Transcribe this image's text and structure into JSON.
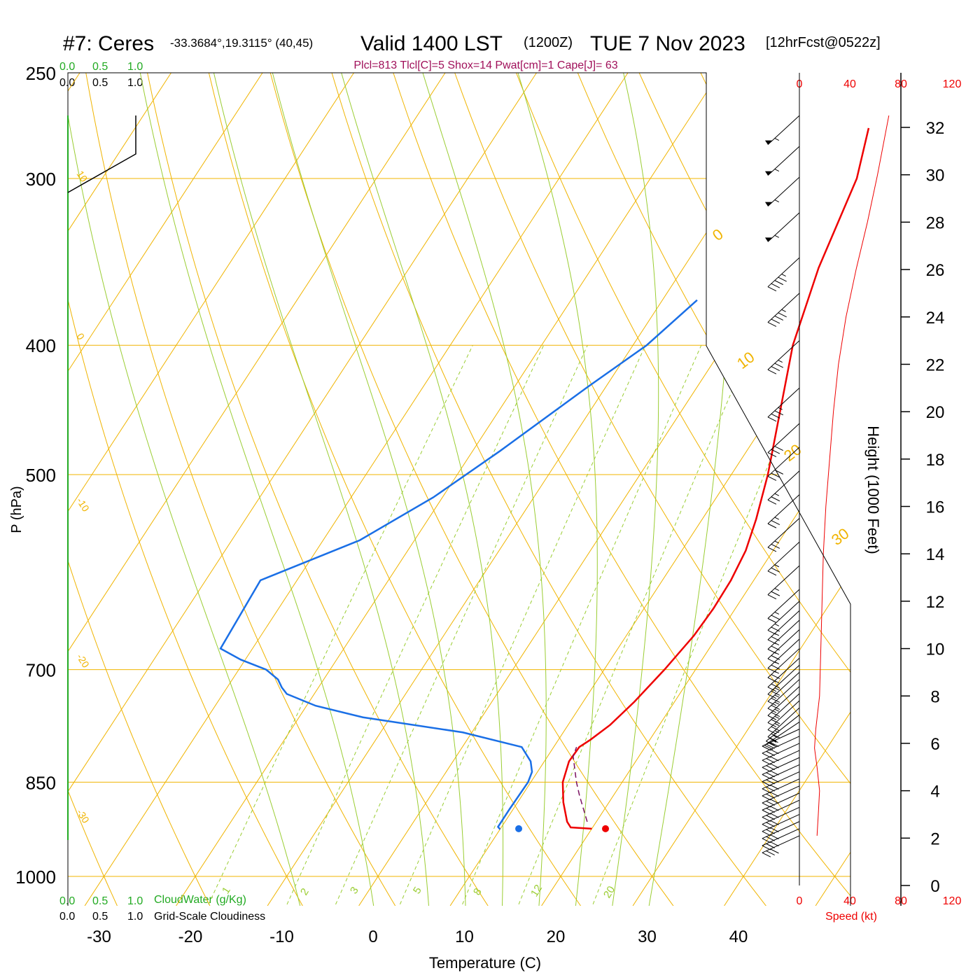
{
  "header": {
    "station": "#7: Ceres",
    "coords": "-33.3684°,19.3115° (40,45)",
    "valid": "Valid 1400 LST",
    "zulu": "(1200Z)",
    "date": "TUE 7 Nov 2023",
    "forecast": "[12hrFcst@0522z]",
    "indices": "Plcl=813 Tlcl[C]=5 Shox=14 Pwat[cm]=1 Cape[J]= 63"
  },
  "colors": {
    "orange": "#f0b400",
    "green_lines": "#9acd32",
    "mixing": "#9acd32",
    "temperature": "#ee0000",
    "dewpoint": "#1a6fe6",
    "parcel": "#7a1060",
    "cloud_green": "#22aa22",
    "indices": "#a0105a",
    "speed": "#ee0000"
  },
  "legend_top": {
    "cloudwater_ticks": [
      "0.0",
      "0.5",
      "1.0"
    ],
    "cloudiness_ticks": [
      "0.0",
      "0.5",
      "1.0"
    ]
  },
  "legend_bottom": {
    "cloudwater_ticks": [
      "0.0",
      "0.5",
      "1.0"
    ],
    "cloudwater_label": "CloudWater (g/Kg)",
    "cloudiness_ticks": [
      "0.0",
      "0.5",
      "1.0"
    ],
    "cloudiness_label": "Grid-Scale Cloudiness"
  },
  "speed_axis": {
    "ticks": [
      "0",
      "40",
      "80",
      "120"
    ],
    "label": "Speed (kt)"
  },
  "chart_data": {
    "type": "skew-t log-p sounding",
    "xlabel": "Temperature (C)",
    "ylabel": "P (hPa)",
    "ylabel_right": "Height (1000 Feet)",
    "x_ticks": [
      -30,
      -20,
      -10,
      0,
      10,
      20,
      30,
      40
    ],
    "p_ticks": [
      1000,
      850,
      700,
      500,
      400,
      300,
      250
    ],
    "height_ticks": [
      0,
      2,
      4,
      6,
      8,
      10,
      12,
      14,
      16,
      18,
      20,
      22,
      24,
      26,
      28,
      30,
      32
    ],
    "isotherm_labels": [
      "10",
      "0",
      "-10",
      "-20",
      "-30"
    ],
    "theta_labels": [
      "0",
      "10",
      "20",
      "30"
    ],
    "mixing_ratio_labels": [
      "1",
      "2",
      "3",
      "5",
      "8",
      "12",
      "20"
    ],
    "temperature_profile": [
      {
        "p": 921,
        "t": 20.0
      },
      {
        "p": 919,
        "t": 17.6
      },
      {
        "p": 910,
        "t": 16.8
      },
      {
        "p": 880,
        "t": 15.0
      },
      {
        "p": 850,
        "t": 13.5
      },
      {
        "p": 820,
        "t": 12.7
      },
      {
        "p": 800,
        "t": 12.8
      },
      {
        "p": 790,
        "t": 13.5
      },
      {
        "p": 770,
        "t": 14.6
      },
      {
        "p": 740,
        "t": 15.6
      },
      {
        "p": 700,
        "t": 16.6
      },
      {
        "p": 660,
        "t": 17.4
      },
      {
        "p": 630,
        "t": 17.6
      },
      {
        "p": 600,
        "t": 17.5
      },
      {
        "p": 570,
        "t": 17.0
      },
      {
        "p": 540,
        "t": 15.9
      },
      {
        "p": 500,
        "t": 14.0
      },
      {
        "p": 470,
        "t": 12.2
      },
      {
        "p": 400,
        "t": 7.5
      },
      {
        "p": 350,
        "t": 4.8
      },
      {
        "p": 300,
        "t": 2.6
      },
      {
        "p": 275,
        "t": 0.3
      }
    ],
    "dewpoint_profile": [
      {
        "p": 922,
        "t": 10.0
      },
      {
        "p": 918,
        "t": 9.6
      },
      {
        "p": 890,
        "t": 9.6
      },
      {
        "p": 850,
        "t": 9.7
      },
      {
        "p": 835,
        "t": 9.4
      },
      {
        "p": 820,
        "t": 8.5
      },
      {
        "p": 800,
        "t": 6.5
      },
      {
        "p": 780,
        "t": -1.0
      },
      {
        "p": 760,
        "t": -13.0
      },
      {
        "p": 745,
        "t": -19.0
      },
      {
        "p": 730,
        "t": -23.0
      },
      {
        "p": 722,
        "t": -24.0
      },
      {
        "p": 712,
        "t": -25.0
      },
      {
        "p": 700,
        "t": -27.0
      },
      {
        "p": 688,
        "t": -30.5
      },
      {
        "p": 675,
        "t": -33.5
      },
      {
        "p": 600,
        "t": -34.0
      },
      {
        "p": 560,
        "t": -26.0
      },
      {
        "p": 520,
        "t": -21.0
      },
      {
        "p": 480,
        "t": -17.0
      },
      {
        "p": 430,
        "t": -12.0
      },
      {
        "p": 400,
        "t": -8.5
      },
      {
        "p": 370,
        "t": -6.2
      },
      {
        "p": 345,
        "t": -4.5
      },
      {
        "p": 325,
        "t": -6.0
      },
      {
        "p": 300,
        "t": -8.0
      },
      {
        "p": 290,
        "t": -8.4
      },
      {
        "p": 275,
        "t": -9.8
      }
    ],
    "parcel_profile": [
      {
        "p": 910,
        "t": 19.0
      },
      {
        "p": 870,
        "t": 16.3
      },
      {
        "p": 850,
        "t": 15.0
      },
      {
        "p": 813,
        "t": 12.8
      },
      {
        "p": 800,
        "t": 12.5
      }
    ],
    "surface_points": [
      {
        "name": "temperature",
        "p": 921,
        "t": 21.5
      },
      {
        "name": "dewpoint",
        "p": 921,
        "t": 12.0
      }
    ],
    "wind_speed_profile": [
      {
        "h": 2.1,
        "s": 14
      },
      {
        "h": 3.0,
        "s": 15
      },
      {
        "h": 4.0,
        "s": 16
      },
      {
        "h": 5.0,
        "s": 14
      },
      {
        "h": 5.8,
        "s": 12
      },
      {
        "h": 6.6,
        "s": 13
      },
      {
        "h": 8.0,
        "s": 16
      },
      {
        "h": 10.0,
        "s": 17
      },
      {
        "h": 12.0,
        "s": 18
      },
      {
        "h": 14.0,
        "s": 19
      },
      {
        "h": 16.0,
        "s": 21
      },
      {
        "h": 18.0,
        "s": 24
      },
      {
        "h": 20.0,
        "s": 27
      },
      {
        "h": 22.0,
        "s": 31
      },
      {
        "h": 24.0,
        "s": 37
      },
      {
        "h": 26.0,
        "s": 45
      },
      {
        "h": 28.0,
        "s": 54
      },
      {
        "h": 30.0,
        "s": 62
      },
      {
        "h": 32.5,
        "s": 71
      }
    ],
    "wind_barbs": [
      {
        "h": 2.1,
        "spd": 30,
        "dir": 285
      },
      {
        "h": 2.4,
        "spd": 30,
        "dir": 285
      },
      {
        "h": 2.7,
        "spd": 30,
        "dir": 285
      },
      {
        "h": 3.0,
        "spd": 30,
        "dir": 285
      },
      {
        "h": 3.3,
        "spd": 30,
        "dir": 285
      },
      {
        "h": 3.6,
        "spd": 30,
        "dir": 285
      },
      {
        "h": 3.9,
        "spd": 30,
        "dir": 285
      },
      {
        "h": 4.2,
        "spd": 30,
        "dir": 285
      },
      {
        "h": 4.5,
        "spd": 30,
        "dir": 285
      },
      {
        "h": 4.8,
        "spd": 30,
        "dir": 285
      },
      {
        "h": 5.1,
        "spd": 30,
        "dir": 285
      },
      {
        "h": 5.4,
        "spd": 30,
        "dir": 285
      },
      {
        "h": 5.7,
        "spd": 30,
        "dir": 285
      },
      {
        "h": 6.0,
        "spd": 30,
        "dir": 285
      },
      {
        "h": 6.3,
        "spd": 30,
        "dir": 285
      },
      {
        "h": 6.6,
        "spd": 30,
        "dir": 285
      },
      {
        "h": 6.9,
        "spd": 25,
        "dir": 295
      },
      {
        "h": 7.2,
        "spd": 25,
        "dir": 300
      },
      {
        "h": 7.5,
        "spd": 25,
        "dir": 305
      },
      {
        "h": 7.8,
        "spd": 25,
        "dir": 305
      },
      {
        "h": 8.1,
        "spd": 25,
        "dir": 305
      },
      {
        "h": 8.4,
        "spd": 25,
        "dir": 305
      },
      {
        "h": 8.7,
        "spd": 25,
        "dir": 305
      },
      {
        "h": 9.0,
        "spd": 25,
        "dir": 305
      },
      {
        "h": 9.3,
        "spd": 25,
        "dir": 305
      },
      {
        "h": 9.6,
        "spd": 25,
        "dir": 305
      },
      {
        "h": 10.0,
        "spd": 25,
        "dir": 305
      },
      {
        "h": 10.4,
        "spd": 25,
        "dir": 305
      },
      {
        "h": 10.8,
        "spd": 25,
        "dir": 305
      },
      {
        "h": 11.2,
        "spd": 25,
        "dir": 305
      },
      {
        "h": 11.6,
        "spd": 25,
        "dir": 305
      },
      {
        "h": 12.0,
        "spd": 25,
        "dir": 305
      },
      {
        "h": 12.5,
        "spd": 25,
        "dir": 305
      },
      {
        "h": 13.5,
        "spd": 25,
        "dir": 305
      },
      {
        "h": 14.5,
        "spd": 25,
        "dir": 305
      },
      {
        "h": 15.5,
        "spd": 25,
        "dir": 305
      },
      {
        "h": 16.5,
        "spd": 25,
        "dir": 305
      },
      {
        "h": 17.5,
        "spd": 25,
        "dir": 305
      },
      {
        "h": 18.5,
        "spd": 30,
        "dir": 305
      },
      {
        "h": 19.5,
        "spd": 30,
        "dir": 305
      },
      {
        "h": 21.0,
        "spd": 35,
        "dir": 305
      },
      {
        "h": 23.0,
        "spd": 35,
        "dir": 305
      },
      {
        "h": 25.0,
        "spd": 45,
        "dir": 305
      },
      {
        "h": 26.5,
        "spd": 45,
        "dir": 305
      },
      {
        "h": 28.4,
        "spd": 55,
        "dir": 305
      },
      {
        "h": 29.9,
        "spd": 55,
        "dir": 305
      },
      {
        "h": 31.2,
        "spd": 55,
        "dir": 305
      },
      {
        "h": 32.5,
        "spd": 55,
        "dir": 305
      }
    ],
    "grid": true
  }
}
